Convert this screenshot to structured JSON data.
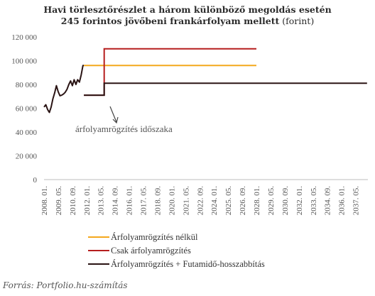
{
  "chart_data": {
    "type": "line",
    "title_line1": "Havi törlesztőrészlet  a három különböző  megoldás esetén",
    "title_line2_bold": "245 forintos jövőbeni  frankárfolyam mellett",
    "title_line2_normal": " (forint)",
    "xlabel": "",
    "ylabel": "",
    "ylim": [
      0,
      120000
    ],
    "y_ticks": [
      "0",
      "20 000",
      "40 000",
      "60 000",
      "80 000",
      "100 000",
      "120 000"
    ],
    "x_tick_labels": [
      "2008. 01.",
      "2009. 05.",
      "2010. 09.",
      "2012. 01.",
      "2013. 05.",
      "2014. 09.",
      "2016. 01.",
      "2017. 05.",
      "2018. 09.",
      "2020. 01.",
      "2021. 05.",
      "2022. 09.",
      "2024. 01.",
      "2025. 05.",
      "2026. 09.",
      "2028. 01.",
      "2029. 05.",
      "2030. 09.",
      "2032. 01.",
      "2033. 05.",
      "2034. 09.",
      "2036. 01.",
      "2037. 05."
    ],
    "grid": false,
    "legend_position": "bottom",
    "history": {
      "x": [
        "2008.01",
        "2008.03",
        "2008.05",
        "2008.07",
        "2008.09",
        "2008.11",
        "2009.01",
        "2009.03",
        "2009.05",
        "2009.07",
        "2009.09",
        "2009.11",
        "2010.01",
        "2010.03",
        "2010.05",
        "2010.07",
        "2010.09",
        "2010.11",
        "2011.01",
        "2011.03",
        "2011.05",
        "2011.07",
        "2011.09",
        "2011.10"
      ],
      "values": [
        61000,
        63000,
        59000,
        56500,
        61000,
        68000,
        73000,
        79000,
        74000,
        70500,
        71000,
        72000,
        73500,
        76000,
        80000,
        83000,
        79000,
        84000,
        80000,
        84000,
        82000,
        88000,
        96000,
        96000
      ]
    },
    "series": [
      {
        "name": "Árfolyamrögzítés nélkül",
        "color": "#f4a81d",
        "x": [
          "2011.10",
          "2028.01"
        ],
        "values": [
          96000,
          96000
        ]
      },
      {
        "name": "Csak árfolyamrögzítés",
        "color": "#b61e1e",
        "x": [
          "2011.10",
          "2013.09",
          "2013.09",
          "2028.01"
        ],
        "values": [
          71000,
          71000,
          110000,
          110000
        ]
      },
      {
        "name": "Árfolyamrögzítés + Futamidő-hosszabbítás",
        "color": "#2a1414",
        "x": [
          "2011.10",
          "2013.09",
          "2013.09",
          "2038.06"
        ],
        "values": [
          71000,
          71000,
          81000,
          81000
        ]
      }
    ],
    "annotation": "árfolyamrögzítés időszaka",
    "source": "Forrás: Portfolio.hu-számítás"
  }
}
